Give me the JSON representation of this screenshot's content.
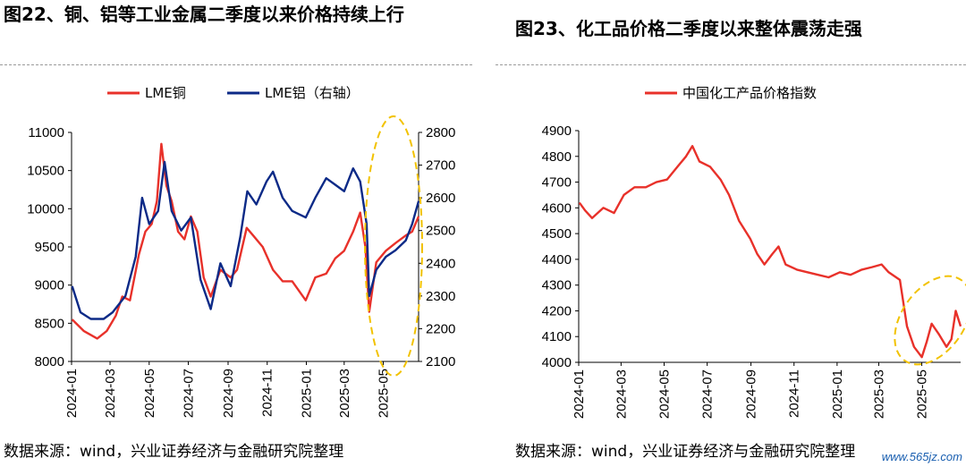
{
  "watermark": "www.565jz.com",
  "charts": [
    {
      "title": "图22、铜、铝等工业金属二季度以来价格持续上行",
      "source": "数据来源：wind，兴业证券经济与金融研究院整理",
      "chart_data": {
        "type": "line",
        "x_tick_labels": [
          "2024-01",
          "2024-03",
          "2024-05",
          "2024-07",
          "2024-09",
          "2024-11",
          "2025-01",
          "2025-03",
          "2025-05"
        ],
        "x_range": [
          "2024-01-01",
          "2025-06-25"
        ],
        "y_left": {
          "ticks": [
            8000,
            8500,
            9000,
            9500,
            10000,
            10500,
            11000
          ],
          "range": [
            8000,
            11000
          ]
        },
        "y_right": {
          "ticks": [
            2100,
            2200,
            2300,
            2400,
            2500,
            2600,
            2700,
            2800
          ],
          "range": [
            2100,
            2800
          ]
        },
        "legend_position": "top",
        "series": [
          {
            "name": "LME铜",
            "axis": "left",
            "color": "#e8312a",
            "points": [
              [
                "2024-01-02",
                8550
              ],
              [
                "2024-01-20",
                8400
              ],
              [
                "2024-02-10",
                8300
              ],
              [
                "2024-02-25",
                8400
              ],
              [
                "2024-03-10",
                8600
              ],
              [
                "2024-03-20",
                8850
              ],
              [
                "2024-04-01",
                8800
              ],
              [
                "2024-04-15",
                9400
              ],
              [
                "2024-04-25",
                9700
              ],
              [
                "2024-05-05",
                9800
              ],
              [
                "2024-05-13",
                10100
              ],
              [
                "2024-05-20",
                10850
              ],
              [
                "2024-05-28",
                10300
              ],
              [
                "2024-06-05",
                10100
              ],
              [
                "2024-06-15",
                9700
              ],
              [
                "2024-06-25",
                9600
              ],
              [
                "2024-07-05",
                9900
              ],
              [
                "2024-07-15",
                9700
              ],
              [
                "2024-07-25",
                9100
              ],
              [
                "2024-08-05",
                8850
              ],
              [
                "2024-08-20",
                9200
              ],
              [
                "2024-09-05",
                9100
              ],
              [
                "2024-09-15",
                9200
              ],
              [
                "2024-09-30",
                9750
              ],
              [
                "2024-10-10",
                9650
              ],
              [
                "2024-10-25",
                9500
              ],
              [
                "2024-11-10",
                9200
              ],
              [
                "2024-11-25",
                9050
              ],
              [
                "2024-12-10",
                9050
              ],
              [
                "2024-12-31",
                8800
              ],
              [
                "2025-01-15",
                9100
              ],
              [
                "2025-02-01",
                9150
              ],
              [
                "2025-02-15",
                9350
              ],
              [
                "2025-03-01",
                9450
              ],
              [
                "2025-03-15",
                9700
              ],
              [
                "2025-03-26",
                9950
              ],
              [
                "2025-04-03",
                9500
              ],
              [
                "2025-04-09",
                8650
              ],
              [
                "2025-04-20",
                9300
              ],
              [
                "2025-05-05",
                9450
              ],
              [
                "2025-05-20",
                9550
              ],
              [
                "2025-06-05",
                9650
              ],
              [
                "2025-06-15",
                9700
              ],
              [
                "2025-06-25",
                9900
              ]
            ]
          },
          {
            "name": "LME铝（右轴）",
            "axis": "right",
            "color": "#0c2a87",
            "points": [
              [
                "2024-01-02",
                2330
              ],
              [
                "2024-01-15",
                2250
              ],
              [
                "2024-01-31",
                2230
              ],
              [
                "2024-02-20",
                2230
              ],
              [
                "2024-03-05",
                2250
              ],
              [
                "2024-03-25",
                2300
              ],
              [
                "2024-04-10",
                2420
              ],
              [
                "2024-04-20",
                2600
              ],
              [
                "2024-05-01",
                2520
              ],
              [
                "2024-05-15",
                2560
              ],
              [
                "2024-05-25",
                2710
              ],
              [
                "2024-06-05",
                2560
              ],
              [
                "2024-06-20",
                2500
              ],
              [
                "2024-07-05",
                2540
              ],
              [
                "2024-07-20",
                2350
              ],
              [
                "2024-08-05",
                2260
              ],
              [
                "2024-08-20",
                2400
              ],
              [
                "2024-09-05",
                2330
              ],
              [
                "2024-09-20",
                2480
              ],
              [
                "2024-10-01",
                2620
              ],
              [
                "2024-10-15",
                2580
              ],
              [
                "2024-10-31",
                2650
              ],
              [
                "2024-11-10",
                2680
              ],
              [
                "2024-11-25",
                2600
              ],
              [
                "2024-12-10",
                2560
              ],
              [
                "2024-12-31",
                2540
              ],
              [
                "2025-01-15",
                2600
              ],
              [
                "2025-02-01",
                2660
              ],
              [
                "2025-02-15",
                2640
              ],
              [
                "2025-03-01",
                2620
              ],
              [
                "2025-03-15",
                2690
              ],
              [
                "2025-03-26",
                2650
              ],
              [
                "2025-04-05",
                2520
              ],
              [
                "2025-04-09",
                2300
              ],
              [
                "2025-04-20",
                2380
              ],
              [
                "2025-05-05",
                2420
              ],
              [
                "2025-05-20",
                2440
              ],
              [
                "2025-06-05",
                2470
              ],
              [
                "2025-06-15",
                2520
              ],
              [
                "2025-06-25",
                2590
              ]
            ]
          }
        ]
      }
    },
    {
      "title": "图23、化工品价格二季度以来整体震荡走强",
      "source": "数据来源：wind，兴业证券经济与金融研究院整理",
      "chart_data": {
        "type": "line",
        "x_tick_labels": [
          "2024-01",
          "2024-03",
          "2024-05",
          "2024-07",
          "2024-09",
          "2024-11",
          "2025-01",
          "2025-03",
          "2025-05"
        ],
        "x_range": [
          "2024-01-01",
          "2025-06-25"
        ],
        "y_left": {
          "ticks": [
            4000,
            4100,
            4200,
            4300,
            4400,
            4500,
            4600,
            4700,
            4800,
            4900
          ],
          "range": [
            4000,
            4900
          ]
        },
        "legend_position": "top",
        "series": [
          {
            "name": "中国化工产品价格指数",
            "axis": "left",
            "color": "#e8312a",
            "points": [
              [
                "2024-01-02",
                4620
              ],
              [
                "2024-01-10",
                4590
              ],
              [
                "2024-01-20",
                4560
              ],
              [
                "2024-02-05",
                4600
              ],
              [
                "2024-02-20",
                4580
              ],
              [
                "2024-03-05",
                4650
              ],
              [
                "2024-03-20",
                4680
              ],
              [
                "2024-04-05",
                4680
              ],
              [
                "2024-04-20",
                4700
              ],
              [
                "2024-05-05",
                4710
              ],
              [
                "2024-05-20",
                4760
              ],
              [
                "2024-06-01",
                4800
              ],
              [
                "2024-06-10",
                4840
              ],
              [
                "2024-06-20",
                4780
              ],
              [
                "2024-07-05",
                4760
              ],
              [
                "2024-07-20",
                4710
              ],
              [
                "2024-08-01",
                4650
              ],
              [
                "2024-08-15",
                4550
              ],
              [
                "2024-08-31",
                4480
              ],
              [
                "2024-09-10",
                4420
              ],
              [
                "2024-09-20",
                4380
              ],
              [
                "2024-10-01",
                4420
              ],
              [
                "2024-10-10",
                4450
              ],
              [
                "2024-10-20",
                4380
              ],
              [
                "2024-11-05",
                4360
              ],
              [
                "2024-11-20",
                4350
              ],
              [
                "2024-12-05",
                4340
              ],
              [
                "2024-12-20",
                4330
              ],
              [
                "2025-01-05",
                4350
              ],
              [
                "2025-01-20",
                4340
              ],
              [
                "2025-02-05",
                4360
              ],
              [
                "2025-02-20",
                4370
              ],
              [
                "2025-03-05",
                4380
              ],
              [
                "2025-03-15",
                4350
              ],
              [
                "2025-03-31",
                4320
              ],
              [
                "2025-04-10",
                4140
              ],
              [
                "2025-04-20",
                4060
              ],
              [
                "2025-05-01",
                4020
              ],
              [
                "2025-05-08",
                4080
              ],
              [
                "2025-05-15",
                4150
              ],
              [
                "2025-05-25",
                4110
              ],
              [
                "2025-06-05",
                4060
              ],
              [
                "2025-06-12",
                4090
              ],
              [
                "2025-06-18",
                4200
              ],
              [
                "2025-06-25",
                4140
              ]
            ]
          }
        ]
      }
    }
  ]
}
